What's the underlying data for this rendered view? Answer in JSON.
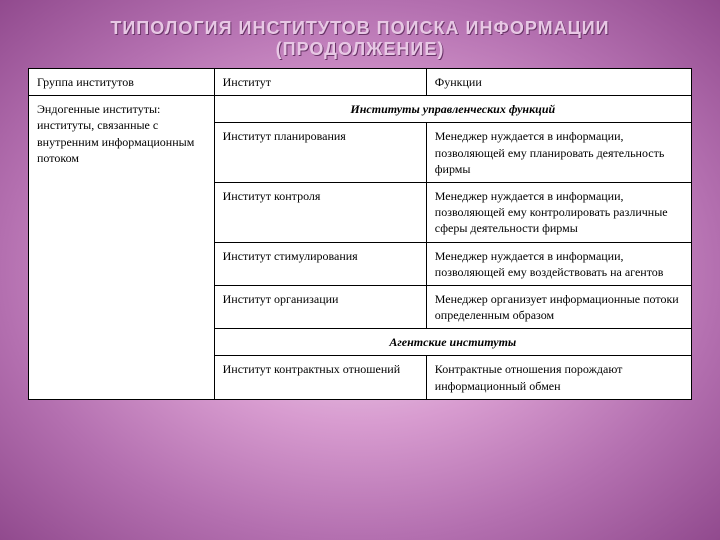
{
  "title": {
    "main": "ТИПОЛОГИЯ ИНСТИТУТОВ ПОИСКА ИНФОРМАЦИИ",
    "sub": "(ПРОДОЛЖЕНИЕ)"
  },
  "colors": {
    "bg_center": "#f5e8f5",
    "bg_outer": "#914a8e",
    "title_color": "#e8c8e5",
    "border": "#000000",
    "cell_bg": "#ffffff",
    "text": "#000000"
  },
  "fonts": {
    "title_family": "Trebuchet MS",
    "body_family": "Times New Roman",
    "title_size": 18,
    "body_size": 12
  },
  "layout": {
    "col_widths_pct": [
      28,
      32,
      40
    ]
  },
  "headers": {
    "c1": "Группа институтов",
    "c2": "Институт",
    "c3": "Функции"
  },
  "group_label": "Эндогенные институты: институты, связанные с внутренним информационным потоком",
  "section1": {
    "label": "Институты управленческих функций",
    "rows": [
      {
        "inst": "Институт планирования",
        "func": "Менеджер нуждается в информации, позволяющей ему планировать деятельность фирмы"
      },
      {
        "inst": "Институт контроля",
        "func": "Менеджер нуждается в информации, позволяющей ему контролировать различные сферы деятельности фирмы"
      },
      {
        "inst": "Институт  стимулирования",
        "func": "Менеджер нуждается в информации, позволяющей ему воздействовать на агентов"
      },
      {
        "inst": "Институт организации",
        "func": "Менеджер организует информационные потоки определенным образом"
      }
    ]
  },
  "section2": {
    "label": "Агентские институты",
    "rows": [
      {
        "inst": "Институт контрактных отношений",
        "func": "Контрактные отношения порождают информационный обмен"
      }
    ]
  }
}
